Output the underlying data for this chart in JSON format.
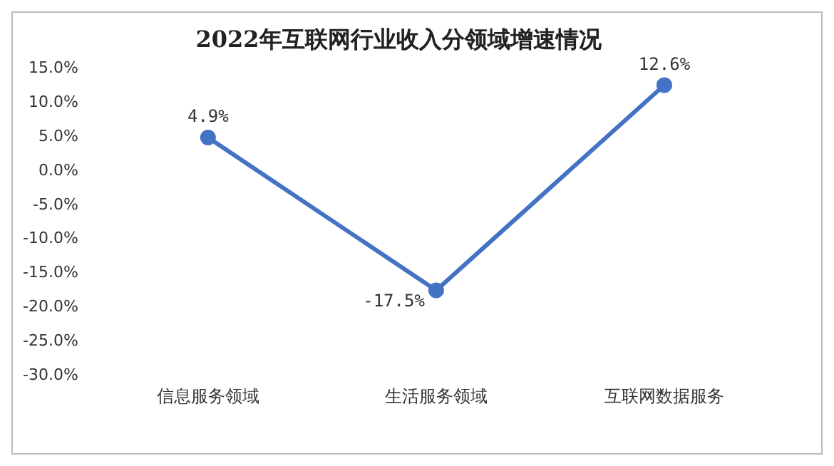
{
  "chart_data": {
    "type": "line",
    "title": "2022年互联网行业收入分领域增速情况",
    "categories": [
      "信息服务领域",
      "生活服务领域",
      "互联网数据服务"
    ],
    "series": [
      {
        "color": "#4472c4",
        "values": [
          4.9,
          -17.5,
          12.6
        ],
        "value_labels": [
          "4.9%",
          "-17.5%",
          "12.6%"
        ]
      }
    ],
    "ylim": [
      -30,
      15
    ],
    "yticks": [
      {
        "value": -30,
        "label": "-30.0%"
      },
      {
        "value": -25,
        "label": "-25.0%"
      },
      {
        "value": -20,
        "label": "-20.0%"
      },
      {
        "value": -15,
        "label": "-15.0%"
      },
      {
        "value": -10,
        "label": "-10.0%"
      },
      {
        "value": -5,
        "label": "-5.0%"
      },
      {
        "value": 0,
        "label": "0.0%"
      },
      {
        "value": 5,
        "label": "5.0%"
      },
      {
        "value": 10,
        "label": "10.0%"
      },
      {
        "value": 15,
        "label": "15.0%"
      }
    ],
    "grid": false,
    "legend": false,
    "marker": "circle",
    "line_style": "solid"
  }
}
